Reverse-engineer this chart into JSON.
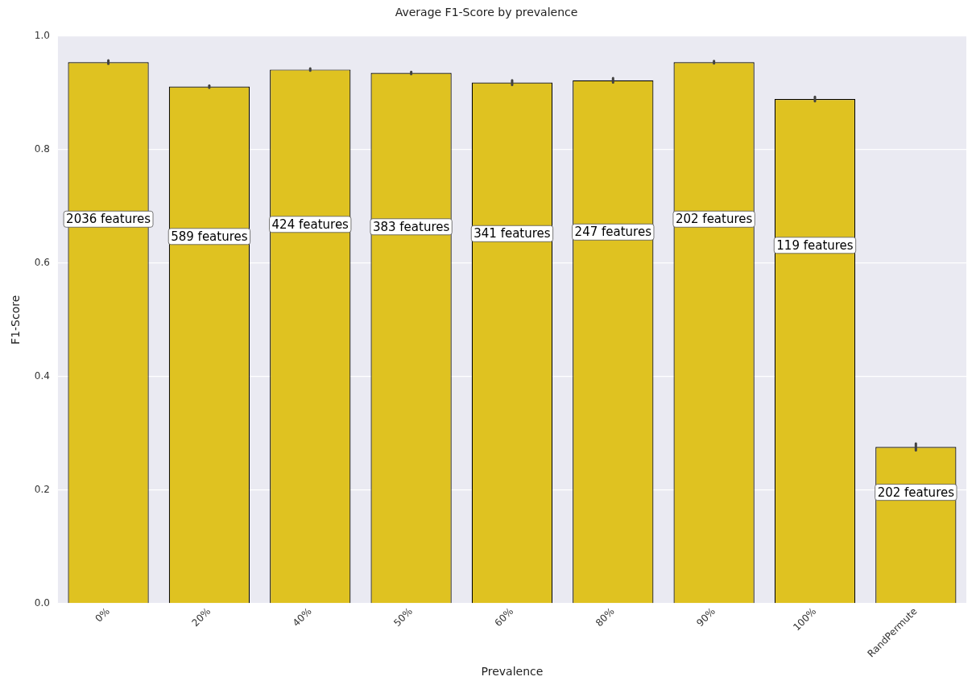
{
  "chart_data": {
    "type": "bar",
    "title": "Average F1-Score by prevalence",
    "xlabel": "Prevalence",
    "ylabel": "F1-Score",
    "categories": [
      "0%",
      "20%",
      "40%",
      "50%",
      "60%",
      "80%",
      "90%",
      "100%",
      "RandPermute"
    ],
    "values": [
      0.954,
      0.911,
      0.941,
      0.935,
      0.918,
      0.922,
      0.954,
      0.889,
      0.276
    ],
    "errors": [
      0.003,
      0.002,
      0.002,
      0.002,
      0.004,
      0.004,
      0.002,
      0.004,
      0.006
    ],
    "color": "#dfc221",
    "ylim": [
      0,
      1
    ],
    "yticks": [
      {
        "value": 0,
        "label": "0.0"
      },
      {
        "value": 0.2,
        "label": "0.2"
      },
      {
        "value": 0.4,
        "label": "0.4"
      },
      {
        "value": 0.6,
        "label": "0.6"
      },
      {
        "value": 0.8,
        "label": "0.8"
      },
      {
        "value": 1,
        "label": "1.0"
      }
    ],
    "grid": "y",
    "annotations": [
      "2036 features",
      "589 features",
      "424 features",
      "383 features",
      "341 features",
      "247 features",
      "202 features",
      "119 features",
      "202 features"
    ]
  }
}
